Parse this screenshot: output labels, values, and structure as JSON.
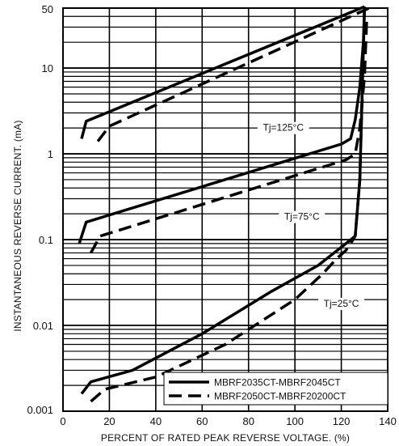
{
  "chart_data": {
    "type": "line",
    "title": "",
    "xlabel": "PERCENT OF RATED PEAK REVERSE VOLTAGE. (%)",
    "ylabel": "INSTANTANEOUS REVERSE CURRENT. (mA)",
    "xlim": [
      0,
      140
    ],
    "ylim": [
      0.001,
      50
    ],
    "y_scale": "log",
    "grid": true,
    "x_ticks": [
      "0",
      "20",
      "40",
      "60",
      "80",
      "100",
      "120",
      "140"
    ],
    "y_ticks": [
      "0.001",
      "0.01",
      "0.1",
      "1",
      "10",
      "50"
    ],
    "annotations": [
      "Tj=125°C",
      "Tj=75°C",
      "Tj=25°C"
    ],
    "legend_position": "bottom-right",
    "series": [
      {
        "name": "MBRF2035CT-MBRF2045CT",
        "style": "solid",
        "group": "Tj=125°C",
        "x": [
          8,
          10,
          130
        ],
        "y": [
          1.5,
          2.4,
          52
        ]
      },
      {
        "name": "MBRF2050CT-MBRF20200CT",
        "style": "dashed",
        "group": "Tj=125°C",
        "x": [
          15,
          20,
          132
        ],
        "y": [
          1.4,
          2.1,
          50
        ]
      },
      {
        "name": "MBRF2035CT-MBRF2045CT",
        "style": "solid",
        "group": "Tj=75°C",
        "x": [
          7,
          10,
          120,
          124,
          126,
          128,
          129.5,
          130
        ],
        "y": [
          0.09,
          0.16,
          1.3,
          1.5,
          2.5,
          6,
          20,
          52
        ]
      },
      {
        "name": "MBRF2050CT-MBRF20200CT",
        "style": "dashed",
        "group": "Tj=75°C",
        "x": [
          12,
          16,
          122,
          126,
          128,
          130,
          131
        ],
        "y": [
          0.07,
          0.11,
          0.85,
          1.0,
          2.0,
          8,
          40
        ]
      },
      {
        "name": "MBRF2035CT-MBRF2045CT",
        "style": "solid",
        "group": "Tj=25°C",
        "x": [
          8,
          12,
          30,
          60,
          90,
          110,
          122,
          126,
          128,
          129,
          130
        ],
        "y": [
          0.0016,
          0.0022,
          0.003,
          0.008,
          0.025,
          0.05,
          0.09,
          0.11,
          0.5,
          5,
          50
        ]
      },
      {
        "name": "MBRF2050CT-MBRF20200CT",
        "style": "dashed",
        "group": "Tj=25°C",
        "x": [
          12,
          18,
          40,
          70,
          100,
          112,
          118,
          122,
          124,
          126,
          128,
          129
        ],
        "y": [
          0.0013,
          0.0018,
          0.0025,
          0.006,
          0.02,
          0.04,
          0.06,
          0.075,
          0.09,
          0.11,
          0.5,
          5
        ]
      }
    ],
    "legend": [
      {
        "label": "MBRF2035CT-MBRF2045CT",
        "style": "solid"
      },
      {
        "label": "MBRF2050CT-MBRF20200CT",
        "style": "dashed"
      }
    ]
  }
}
